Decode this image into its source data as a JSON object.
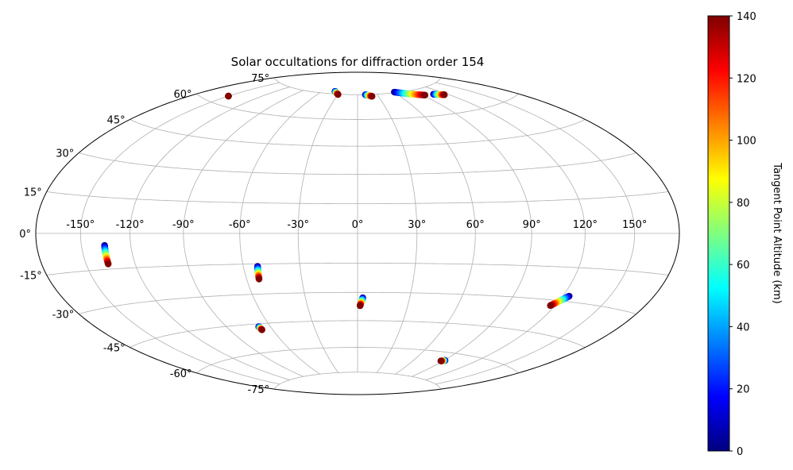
{
  "chart_data": {
    "type": "scatter",
    "projection": "hammer",
    "title": "Solar occultations for diffraction order 154",
    "grid": true,
    "lon_ticks": [
      -150,
      -120,
      -90,
      -60,
      -30,
      0,
      30,
      60,
      90,
      120,
      150
    ],
    "lat_ticks": [
      -75,
      -60,
      -45,
      -30,
      -15,
      0,
      15,
      30,
      45,
      60,
      75
    ],
    "lon_tick_labels": [
      "-150°",
      "-120°",
      "-90°",
      "-60°",
      "-30°",
      "0°",
      "30°",
      "60°",
      "90°",
      "120°",
      "150°"
    ],
    "lat_tick_labels": [
      "-75°",
      "-60°",
      "-45°",
      "-30°",
      "-15°",
      "0°",
      "15°",
      "30°",
      "45°",
      "60°",
      "75°"
    ],
    "colorbar": {
      "label": "Tangent Point Altitude (km)",
      "min": 0,
      "max": 140,
      "ticks": [
        0,
        20,
        40,
        60,
        80,
        100,
        120,
        140
      ],
      "tick_labels": [
        "0",
        "20",
        "40",
        "60",
        "80",
        "100",
        "120",
        "140"
      ],
      "colormap": "jet"
    },
    "occultations": [
      {
        "lon_start": -135.6,
        "lat_start": -5.0,
        "lon_end": -136.2,
        "lat_end": -12.8
      },
      {
        "lon_start": -52.4,
        "lat_start": -16.2,
        "lon_end": -53.2,
        "lat_end": -22.5
      },
      {
        "lon_start": 3.0,
        "lat_start": -32.8,
        "lon_end": 1.5,
        "lat_end": -37.0
      },
      {
        "lon_start": 124.0,
        "lat_start": -27.6,
        "lon_end": 117.0,
        "lat_end": -32.5
      },
      {
        "lon_start": -68.0,
        "lat_start": -46.5,
        "lon_end": -67.5,
        "lat_end": -48.2
      },
      {
        "lon_start": 91.0,
        "lat_start": -64.2,
        "lon_end": 88.0,
        "lat_end": -64.8
      },
      {
        "lon_start": -150.0,
        "lat_start": 64.0,
        "lon_end": -150.0,
        "lat_end": 64.0
      },
      {
        "lon_start": -39.0,
        "lat_start": 76.6,
        "lon_end": -30.0,
        "lat_end": 74.8
      },
      {
        "lon_start": 12.0,
        "lat_start": 74.9,
        "lon_end": 21.0,
        "lat_end": 73.8
      },
      {
        "lon_start": 60.0,
        "lat_start": 75.4,
        "lon_end": 93.0,
        "lat_end": 71.4
      },
      {
        "lon_start": 105.0,
        "lat_start": 71.0,
        "lon_end": 115.0,
        "lat_end": 69.6
      }
    ]
  }
}
